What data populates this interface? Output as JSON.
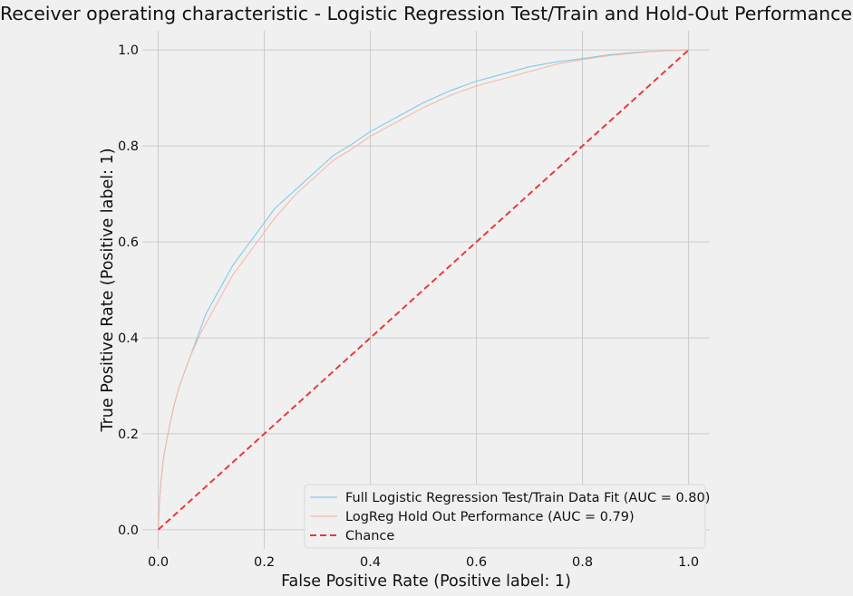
{
  "chart_data": {
    "type": "line",
    "title": "Receiver operating characteristic - Logistic Regression Test/Train and Hold-Out Performance",
    "xlabel": "False Positive Rate (Positive label: 1)",
    "ylabel": "True Positive Rate (Positive label: 1)",
    "xlim": [
      -0.03,
      1.04
    ],
    "ylim": [
      -0.04,
      1.04
    ],
    "xticks": [
      0.0,
      0.2,
      0.4,
      0.6,
      0.8,
      1.0
    ],
    "xtick_labels": [
      "0.0",
      "0.2",
      "0.4",
      "0.6",
      "0.8",
      "1.0"
    ],
    "yticks": [
      0.0,
      0.2,
      0.4,
      0.6,
      0.8,
      1.0
    ],
    "ytick_labels": [
      "0.0",
      "0.2",
      "0.4",
      "0.6",
      "0.8",
      "1.0"
    ],
    "grid": true,
    "legend_position": "lower-right",
    "series": [
      {
        "name": "Full Logistic Regression Test/Train Data Fit (AUC = 0.80)",
        "color": "#7fcbe9",
        "dash": "solid",
        "x": [
          0,
          0.002,
          0.005,
          0.01,
          0.015,
          0.02,
          0.03,
          0.04,
          0.05,
          0.06,
          0.07,
          0.08,
          0.09,
          0.1,
          0.12,
          0.14,
          0.16,
          0.18,
          0.2,
          0.22,
          0.24,
          0.26,
          0.28,
          0.3,
          0.33,
          0.36,
          0.4,
          0.45,
          0.5,
          0.55,
          0.6,
          0.65,
          0.7,
          0.75,
          0.8,
          0.85,
          0.9,
          0.95,
          1.0
        ],
        "y": [
          0,
          0.05,
          0.1,
          0.15,
          0.18,
          0.21,
          0.26,
          0.3,
          0.33,
          0.36,
          0.39,
          0.42,
          0.45,
          0.47,
          0.51,
          0.55,
          0.58,
          0.61,
          0.64,
          0.67,
          0.69,
          0.71,
          0.73,
          0.75,
          0.78,
          0.8,
          0.83,
          0.86,
          0.89,
          0.915,
          0.935,
          0.95,
          0.965,
          0.975,
          0.982,
          0.99,
          0.995,
          0.998,
          1.0
        ]
      },
      {
        "name": "LogReg Hold Out Performance (AUC = 0.79)",
        "color": "#f8b8aa",
        "dash": "solid",
        "x": [
          0,
          0.002,
          0.005,
          0.01,
          0.015,
          0.02,
          0.03,
          0.04,
          0.05,
          0.06,
          0.07,
          0.08,
          0.09,
          0.1,
          0.12,
          0.14,
          0.16,
          0.18,
          0.2,
          0.22,
          0.24,
          0.26,
          0.28,
          0.3,
          0.33,
          0.36,
          0.4,
          0.45,
          0.5,
          0.55,
          0.6,
          0.65,
          0.7,
          0.75,
          0.8,
          0.85,
          0.9,
          0.95,
          1.0
        ],
        "y": [
          0,
          0.05,
          0.1,
          0.15,
          0.18,
          0.21,
          0.26,
          0.3,
          0.33,
          0.36,
          0.385,
          0.41,
          0.43,
          0.45,
          0.49,
          0.53,
          0.56,
          0.59,
          0.62,
          0.65,
          0.675,
          0.7,
          0.72,
          0.74,
          0.77,
          0.79,
          0.82,
          0.85,
          0.88,
          0.905,
          0.925,
          0.94,
          0.955,
          0.97,
          0.98,
          0.988,
          0.994,
          0.998,
          1.0
        ]
      },
      {
        "name": "Chance",
        "color": "#e83a3a",
        "dash": "dashed",
        "x": [
          0,
          1
        ],
        "y": [
          0,
          1
        ]
      }
    ]
  }
}
